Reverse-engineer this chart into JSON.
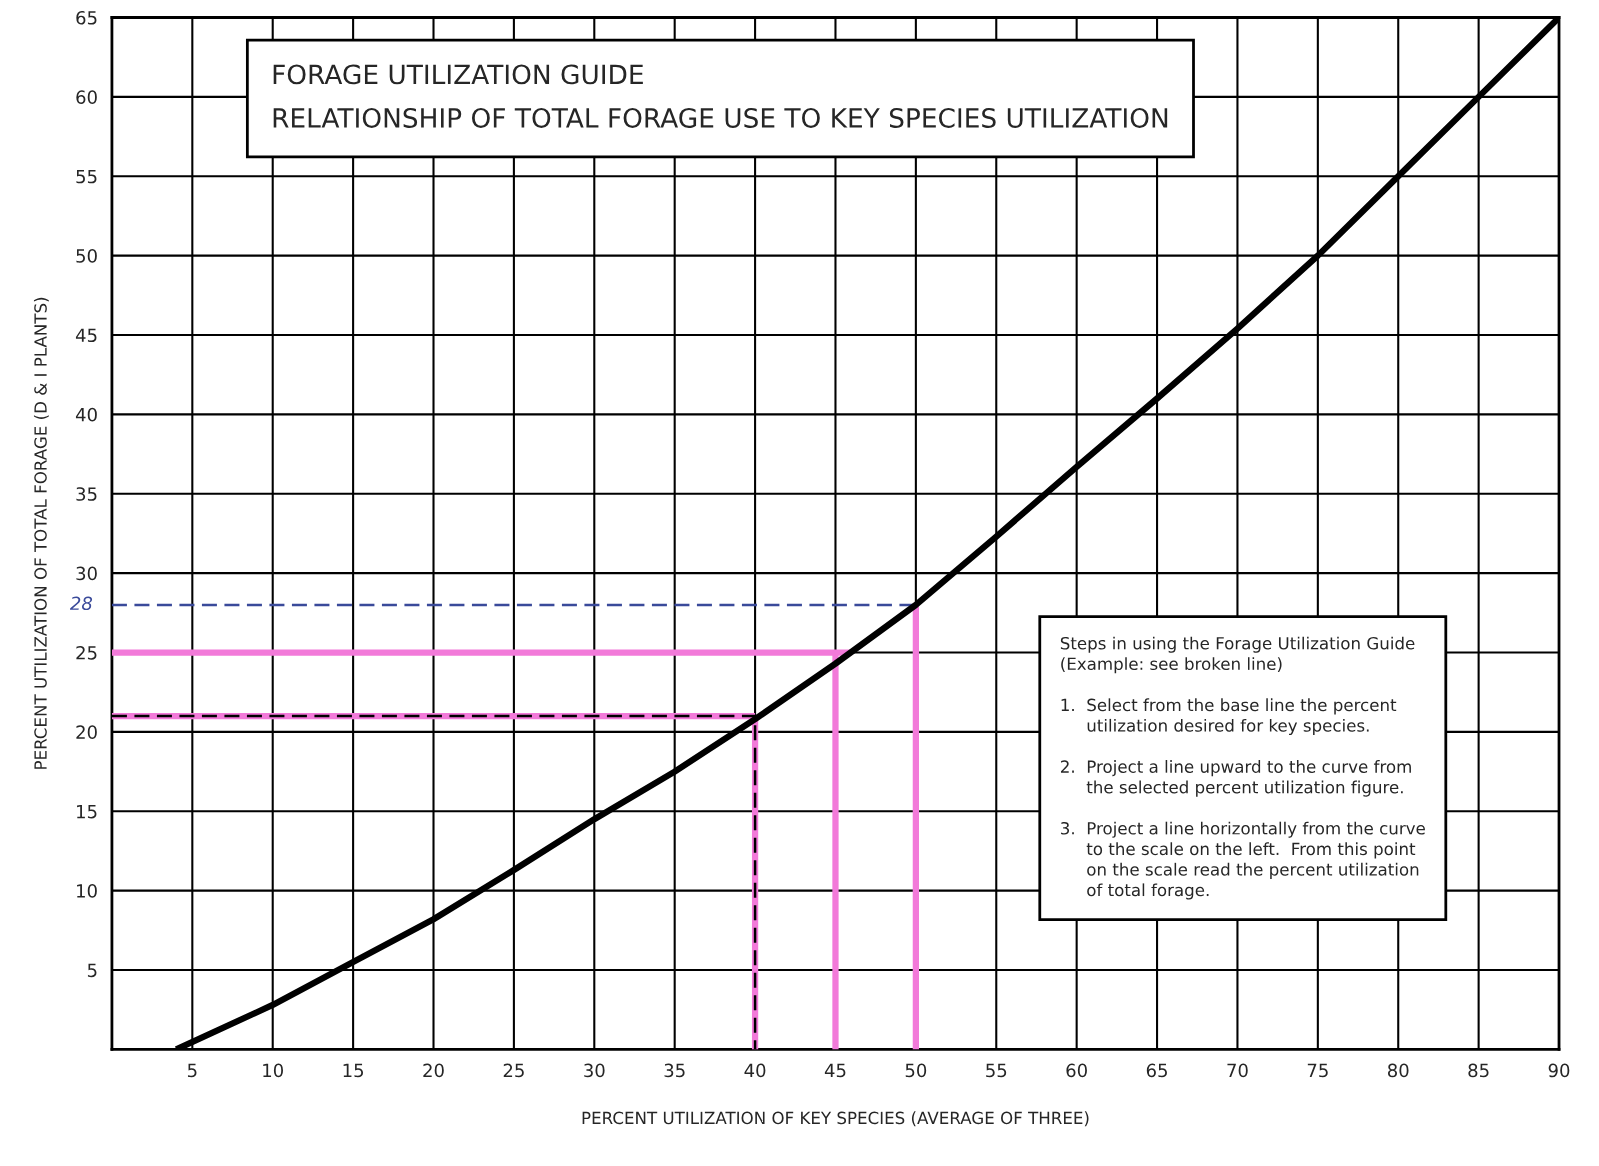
{
  "chart_data": {
    "type": "line",
    "title": "FORAGE UTILIZATION GUIDE",
    "subtitle": "RELATIONSHIP OF TOTAL FORAGE USE TO KEY SPECIES UTILIZATION",
    "xlabel": "PERCENT UTILIZATION OF KEY SPECIES (AVERAGE OF THREE)",
    "ylabel": "PERCENT UTILIZATION OF TOTAL FORAGE (D & I PLANTS)",
    "xlim": [
      0,
      90
    ],
    "ylim": [
      0,
      65
    ],
    "xticks": [
      5,
      10,
      15,
      20,
      25,
      30,
      35,
      40,
      45,
      50,
      55,
      60,
      65,
      70,
      75,
      80,
      85,
      90
    ],
    "yticks": [
      5,
      10,
      15,
      20,
      25,
      30,
      35,
      40,
      45,
      50,
      55,
      60,
      65
    ],
    "grid": true,
    "marker": "none",
    "series": [
      {
        "color": "#000000",
        "line_style": "solid",
        "x": [
          4,
          10,
          15,
          20,
          25,
          30,
          35,
          40,
          45,
          50,
          55,
          60,
          65,
          70,
          75,
          80,
          85,
          90
        ],
        "values": [
          0,
          2.8,
          5.5,
          8.2,
          11.3,
          14.5,
          17.5,
          20.8,
          24.3,
          28,
          32.3,
          36.7,
          41,
          45.4,
          50,
          55,
          60,
          65
        ]
      },
      {
        "color": "#f27ad9",
        "line_style": "solid",
        "x": [
          0,
          46
        ],
        "values": [
          25,
          25
        ]
      },
      {
        "color": "#f27ad9",
        "line_style": "solid",
        "x": [
          0,
          40
        ],
        "values": [
          21,
          21
        ]
      },
      {
        "color": "#f27ad9",
        "line_style": "solid",
        "x": [
          40,
          40
        ],
        "values": [
          0,
          21
        ]
      },
      {
        "color": "#f27ad9",
        "line_style": "solid",
        "x": [
          45,
          45
        ],
        "values": [
          0,
          25
        ]
      },
      {
        "color": "#f27ad9",
        "line_style": "solid",
        "x": [
          50,
          50
        ],
        "values": [
          0,
          28
        ]
      },
      {
        "color": "#000000",
        "line_style": "dashed",
        "x": [
          0,
          40,
          40
        ],
        "values": [
          21,
          21,
          0
        ]
      },
      {
        "color": "#3a4a9a",
        "line_style": "dashed",
        "x": [
          0,
          50
        ],
        "values": [
          28,
          28
        ]
      }
    ],
    "annotations": [
      {
        "text": "28",
        "x": 0,
        "y": 28
      },
      "Steps in using the Forage Utilization Guide\n(Example: see broken line)\n\n1.  Select from the base line the percent\n     utilization desired for key species.\n\n2.  Project a line upward to the curve from\n     the selected percent utilization figure.\n\n3.  Project a line horizontally from the curve\n     to the scale on the left.  From this point\n     on the scale read the percent utilization\n     of total forage."
    ]
  }
}
